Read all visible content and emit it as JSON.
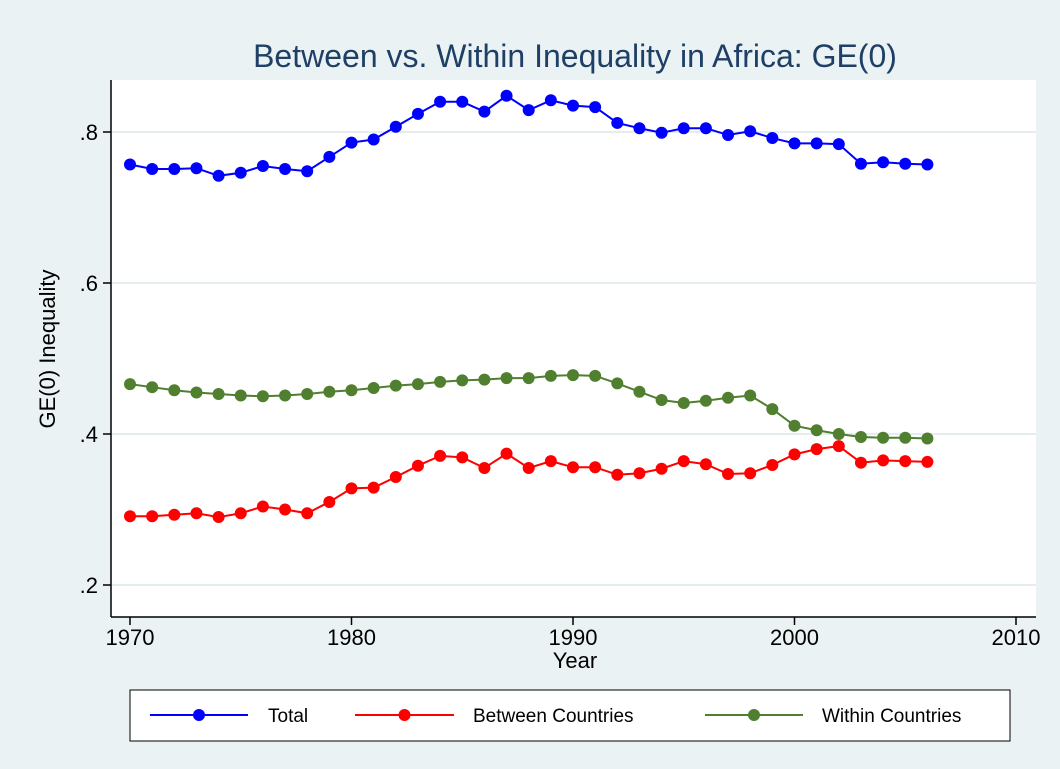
{
  "chart_data": {
    "type": "line",
    "title": "Between vs. Within Inequality in Africa: GE(0)",
    "xlabel": "Year",
    "ylabel": "GE(0) Inequality",
    "xlim": [
      1970,
      2010
    ],
    "ylim": [
      0.2,
      0.87
    ],
    "xticks": [
      1970,
      1980,
      1990,
      2000,
      2010
    ],
    "xtick_labels": [
      "1970",
      "1980",
      "1990",
      "2000",
      "2010"
    ],
    "yticks": [
      0.2,
      0.4,
      0.6,
      0.8
    ],
    "ytick_labels": [
      ".2",
      ".4",
      ".6",
      ".8"
    ],
    "grid": true,
    "legend_position": "bottom",
    "x": [
      1970,
      1971,
      1972,
      1973,
      1974,
      1975,
      1976,
      1977,
      1978,
      1979,
      1980,
      1981,
      1982,
      1983,
      1984,
      1985,
      1986,
      1987,
      1988,
      1989,
      1990,
      1991,
      1992,
      1993,
      1994,
      1995,
      1996,
      1997,
      1998,
      1999,
      2000,
      2001,
      2002,
      2003,
      2004,
      2005,
      2006
    ],
    "series": [
      {
        "name": "Total",
        "color": "#0000ff",
        "values": [
          0.757,
          0.751,
          0.751,
          0.752,
          0.742,
          0.746,
          0.755,
          0.751,
          0.748,
          0.767,
          0.786,
          0.79,
          0.807,
          0.824,
          0.84,
          0.84,
          0.827,
          0.848,
          0.829,
          0.842,
          0.835,
          0.833,
          0.812,
          0.805,
          0.799,
          0.805,
          0.805,
          0.796,
          0.801,
          0.792,
          0.785,
          0.785,
          0.784,
          0.758,
          0.76,
          0.758,
          0.757
        ]
      },
      {
        "name": "Between Countries",
        "color": "#ff0000",
        "values": [
          0.291,
          0.291,
          0.293,
          0.295,
          0.29,
          0.295,
          0.304,
          0.3,
          0.295,
          0.31,
          0.328,
          0.329,
          0.343,
          0.358,
          0.371,
          0.369,
          0.355,
          0.374,
          0.355,
          0.364,
          0.356,
          0.356,
          0.346,
          0.348,
          0.354,
          0.364,
          0.36,
          0.347,
          0.348,
          0.359,
          0.373,
          0.38,
          0.384,
          0.362,
          0.365,
          0.364,
          0.363
        ]
      },
      {
        "name": "Within Countries",
        "color": "#4f7f2f",
        "values": [
          0.466,
          0.462,
          0.458,
          0.455,
          0.453,
          0.451,
          0.45,
          0.451,
          0.453,
          0.456,
          0.458,
          0.461,
          0.464,
          0.466,
          0.469,
          0.471,
          0.472,
          0.474,
          0.474,
          0.477,
          0.478,
          0.477,
          0.467,
          0.456,
          0.445,
          0.441,
          0.444,
          0.448,
          0.451,
          0.433,
          0.411,
          0.405,
          0.4,
          0.396,
          0.395,
          0.395,
          0.394
        ]
      }
    ]
  }
}
